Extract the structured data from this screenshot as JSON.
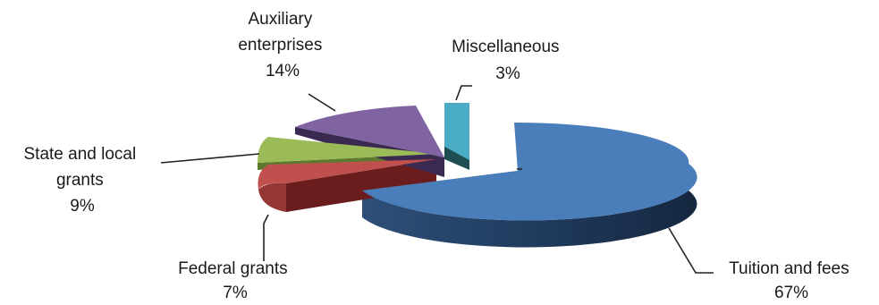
{
  "chart_data": {
    "type": "pie",
    "three_d": true,
    "exploded": true,
    "slices": [
      {
        "name_lines": [
          "Tuition and fees"
        ],
        "pct_label": "67%",
        "value": 67,
        "color": "#4a7ebb"
      },
      {
        "name_lines": [
          "Federal grants"
        ],
        "pct_label": "7%",
        "value": 7,
        "color": "#c0504d"
      },
      {
        "name_lines": [
          "State and local",
          "grants"
        ],
        "pct_label": "9%",
        "value": 9,
        "color": "#9bbb59"
      },
      {
        "name_lines": [
          "Auxiliary",
          "enterprises"
        ],
        "pct_label": "14%",
        "value": 14,
        "color": "#8064a2"
      },
      {
        "name_lines": [
          "Miscellaneous"
        ],
        "pct_label": "3%",
        "value": 3,
        "color": "#4bacc6"
      }
    ]
  }
}
